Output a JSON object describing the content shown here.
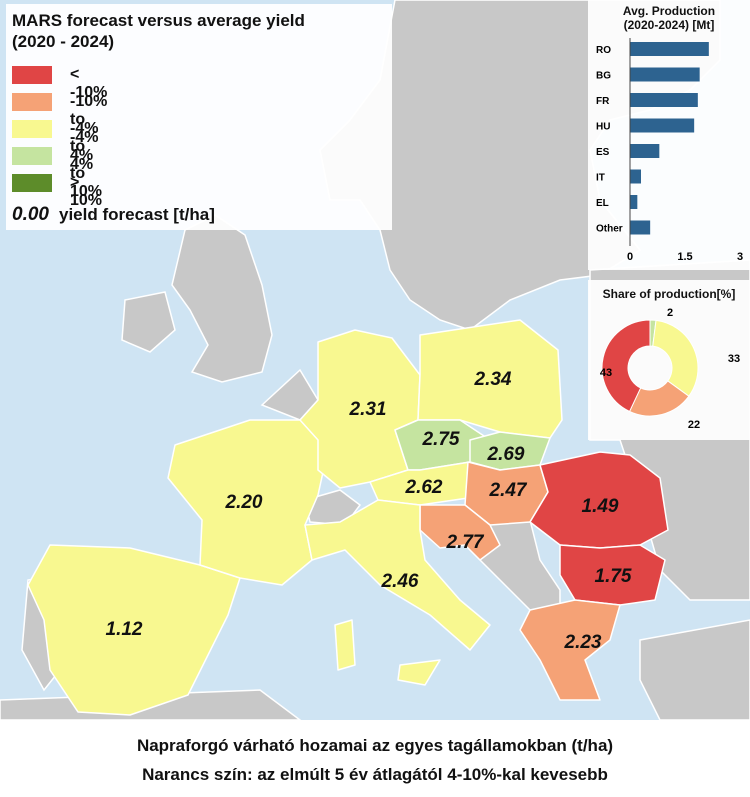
{
  "legend": {
    "title_line1": "MARS forecast versus average yield",
    "title_line2": "(2020 - 2024)",
    "classes": [
      {
        "label": "< -10%",
        "color": "#e04545"
      },
      {
        "label": "-10% to -4%",
        "color": "#f5a276"
      },
      {
        "label": "-4% to 4%",
        "color": "#f8f890"
      },
      {
        "label": "4% to 10%",
        "color": "#c5e4a0"
      },
      {
        "label": "> 10%",
        "color": "#5d8c2a"
      }
    ],
    "note_value": "0.00",
    "note_text": "yield forecast [t/ha]"
  },
  "colors": {
    "sea": "#cfe4f3",
    "other_land": "#c8c8c8",
    "border": "#ffffff",
    "bar": "#2d6390"
  },
  "regions": [
    {
      "name": "Spain",
      "value": "1.12",
      "class": 2
    },
    {
      "name": "France",
      "value": "2.20",
      "class": 2
    },
    {
      "name": "Germany",
      "value": "2.31",
      "class": 2
    },
    {
      "name": "Poland",
      "value": "2.34",
      "class": 2
    },
    {
      "name": "Czechia",
      "value": "2.75",
      "class": 3
    },
    {
      "name": "Slovakia",
      "value": "2.69",
      "class": 3
    },
    {
      "name": "Austria",
      "value": "2.62",
      "class": 2
    },
    {
      "name": "Hungary",
      "value": "2.47",
      "class": 1
    },
    {
      "name": "Croatia",
      "value": "2.77",
      "class": 1
    },
    {
      "name": "Italy",
      "value": "2.46",
      "class": 2
    },
    {
      "name": "Romania",
      "value": "1.49",
      "class": 0
    },
    {
      "name": "Bulgaria",
      "value": "1.75",
      "class": 0
    },
    {
      "name": "Greece",
      "value": "2.23",
      "class": 1
    }
  ],
  "chart_data": [
    {
      "type": "bar",
      "title_line1": "Avg. Production",
      "title_line2": "(2020-2024) [Mt]",
      "categories": [
        "RO",
        "BG",
        "FR",
        "HU",
        "ES",
        "IT",
        "EL",
        "Other"
      ],
      "values": [
        2.15,
        1.9,
        1.85,
        1.75,
        0.8,
        0.3,
        0.2,
        0.55
      ],
      "xlim": [
        0,
        3
      ],
      "ticks": [
        "0",
        "1.5",
        "3"
      ]
    },
    {
      "type": "pie",
      "title": "Share of production[%]",
      "slices": [
        {
          "value": 2,
          "label": "2",
          "color": "#c5e4a0"
        },
        {
          "value": 33,
          "label": "33",
          "color": "#f8f890"
        },
        {
          "value": 22,
          "label": "22",
          "color": "#f5a276"
        },
        {
          "value": 43,
          "label": "43",
          "color": "#e04545"
        }
      ]
    }
  ],
  "caption": {
    "line1": "Napraforgó várható hozamai az egyes tagállamokban (t/ha)",
    "line2": "Narancs szín: az elmúlt 5 év átlagától 4-10%-kal kevesebb"
  }
}
